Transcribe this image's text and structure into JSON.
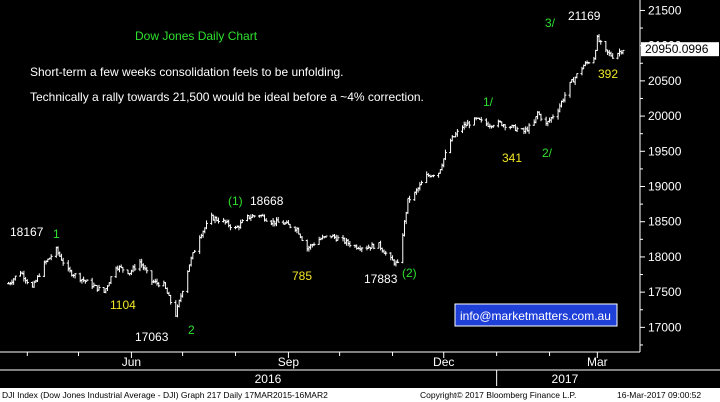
{
  "colors": {
    "background": "#000000",
    "bars": "#ffffff",
    "title": "#2ee02e",
    "annotation_white": "#ffffff",
    "annotation_yellow": "#f2e627",
    "annotation_green": "#2ee02e",
    "info_box_bg": "#1f3fd9",
    "last_price_bg": "#ffffff"
  },
  "chart_data": {
    "type": "ohlc",
    "title": "Dow Jones Daily Chart",
    "y_ticks": [
      17000,
      17500,
      18000,
      18500,
      19000,
      19500,
      20000,
      20500,
      21000,
      21500
    ],
    "ylim": [
      16650,
      21620
    ],
    "x_ticks": [
      "Jun",
      "Sep",
      "Dec",
      "Mar"
    ],
    "year_labels": [
      "2016",
      "2017"
    ],
    "last_price": "20950.0996",
    "grid": false,
    "notes": [
      "Short-term a few weeks consolidation feels to be unfolding.",
      "Technically a rally towards 21,500 would be ideal before a ~4% correction."
    ],
    "annotations": [
      {
        "text": "18167",
        "color": "white",
        "x_date": "2016-04-20",
        "y": 18167
      },
      {
        "text": "1",
        "color": "green",
        "x_date": "2016-04-20",
        "y": 18167
      },
      {
        "text": "1104",
        "color": "yellow",
        "x_date": "2016-05-19",
        "y": 17530
      },
      {
        "text": "17063",
        "color": "white",
        "x_date": "2016-06-27",
        "y": 17063
      },
      {
        "text": "2",
        "color": "green",
        "x_date": "2016-06-27",
        "y": 17063
      },
      {
        "text": "(1)",
        "color": "green",
        "x_date": "2016-08-15",
        "y": 18668
      },
      {
        "text": "18668",
        "color": "white",
        "x_date": "2016-08-15",
        "y": 18668
      },
      {
        "text": "785",
        "color": "yellow",
        "x_date": "2016-09-12",
        "y": 17990
      },
      {
        "text": "17883",
        "color": "white",
        "x_date": "2016-11-04",
        "y": 17883
      },
      {
        "text": "(2)",
        "color": "green",
        "x_date": "2016-11-04",
        "y": 17883
      },
      {
        "text": "1/",
        "color": "green",
        "x_date": "2016-12-20",
        "y": 19974
      },
      {
        "text": "341",
        "color": "yellow",
        "x_date": "2016-12-30",
        "y": 19760
      },
      {
        "text": "2/",
        "color": "green",
        "x_date": "2017-01-19",
        "y": 19730
      },
      {
        "text": "3/",
        "color": "green",
        "x_date": "2017-03-01",
        "y": 21169
      },
      {
        "text": "21169",
        "color": "white",
        "x_date": "2017-03-01",
        "y": 21169
      },
      {
        "text": "392",
        "color": "yellow",
        "x_date": "2017-03-10",
        "y": 20777
      }
    ],
    "series": [
      {
        "date": "2016-03-21",
        "close": 17620
      },
      {
        "date": "2016-03-28",
        "close": 17790
      },
      {
        "date": "2016-04-04",
        "close": 17560
      },
      {
        "date": "2016-04-11",
        "close": 17900
      },
      {
        "date": "2016-04-18",
        "close": 18100
      },
      {
        "date": "2016-04-25",
        "close": 17800
      },
      {
        "date": "2016-05-02",
        "close": 17700
      },
      {
        "date": "2016-05-09",
        "close": 17600
      },
      {
        "date": "2016-05-16",
        "close": 17500
      },
      {
        "date": "2016-05-23",
        "close": 17870
      },
      {
        "date": "2016-05-31",
        "close": 17780
      },
      {
        "date": "2016-06-06",
        "close": 17930
      },
      {
        "date": "2016-06-13",
        "close": 17650
      },
      {
        "date": "2016-06-20",
        "close": 17600
      },
      {
        "date": "2016-06-27",
        "close": 17180
      },
      {
        "date": "2016-07-05",
        "close": 17900
      },
      {
        "date": "2016-07-11",
        "close": 18300
      },
      {
        "date": "2016-07-18",
        "close": 18560
      },
      {
        "date": "2016-07-25",
        "close": 18500
      },
      {
        "date": "2016-08-01",
        "close": 18400
      },
      {
        "date": "2016-08-08",
        "close": 18560
      },
      {
        "date": "2016-08-15",
        "close": 18600
      },
      {
        "date": "2016-08-22",
        "close": 18500
      },
      {
        "date": "2016-08-29",
        "close": 18480
      },
      {
        "date": "2016-09-06",
        "close": 18400
      },
      {
        "date": "2016-09-12",
        "close": 18120
      },
      {
        "date": "2016-09-19",
        "close": 18250
      },
      {
        "date": "2016-09-26",
        "close": 18300
      },
      {
        "date": "2016-10-03",
        "close": 18230
      },
      {
        "date": "2016-10-10",
        "close": 18150
      },
      {
        "date": "2016-10-17",
        "close": 18140
      },
      {
        "date": "2016-10-24",
        "close": 18170
      },
      {
        "date": "2016-10-31",
        "close": 17960
      },
      {
        "date": "2016-11-04",
        "close": 17890
      },
      {
        "date": "2016-11-07",
        "close": 18330
      },
      {
        "date": "2016-11-10",
        "close": 18800
      },
      {
        "date": "2016-11-14",
        "close": 18900
      },
      {
        "date": "2016-11-21",
        "close": 19150
      },
      {
        "date": "2016-11-28",
        "close": 19200
      },
      {
        "date": "2016-12-05",
        "close": 19650
      },
      {
        "date": "2016-12-12",
        "close": 19850
      },
      {
        "date": "2016-12-20",
        "close": 19950
      },
      {
        "date": "2016-12-27",
        "close": 19880
      },
      {
        "date": "2017-01-03",
        "close": 19900
      },
      {
        "date": "2017-01-09",
        "close": 19850
      },
      {
        "date": "2017-01-17",
        "close": 19780
      },
      {
        "date": "2017-01-23",
        "close": 19900
      },
      {
        "date": "2017-01-25",
        "close": 20050
      },
      {
        "date": "2017-01-30",
        "close": 19880
      },
      {
        "date": "2017-02-06",
        "close": 20100
      },
      {
        "date": "2017-02-13",
        "close": 20450
      },
      {
        "date": "2017-02-21",
        "close": 20720
      },
      {
        "date": "2017-02-27",
        "close": 20830
      },
      {
        "date": "2017-03-01",
        "close": 21100
      },
      {
        "date": "2017-03-06",
        "close": 20910
      },
      {
        "date": "2017-03-10",
        "close": 20850
      },
      {
        "date": "2017-03-16",
        "close": 20950
      }
    ]
  },
  "info_box": {
    "text": "info@marketmatters.com.au"
  },
  "footer": {
    "left": "DJI Index  (Dow Jones Industrial Average - DJI)  Graph 217  Daily 17MAR2015-16MAR2",
    "center": "Copyright© 2017 Bloomberg Finance L.P.",
    "right": "16-Mar-2017  09:00:52"
  }
}
